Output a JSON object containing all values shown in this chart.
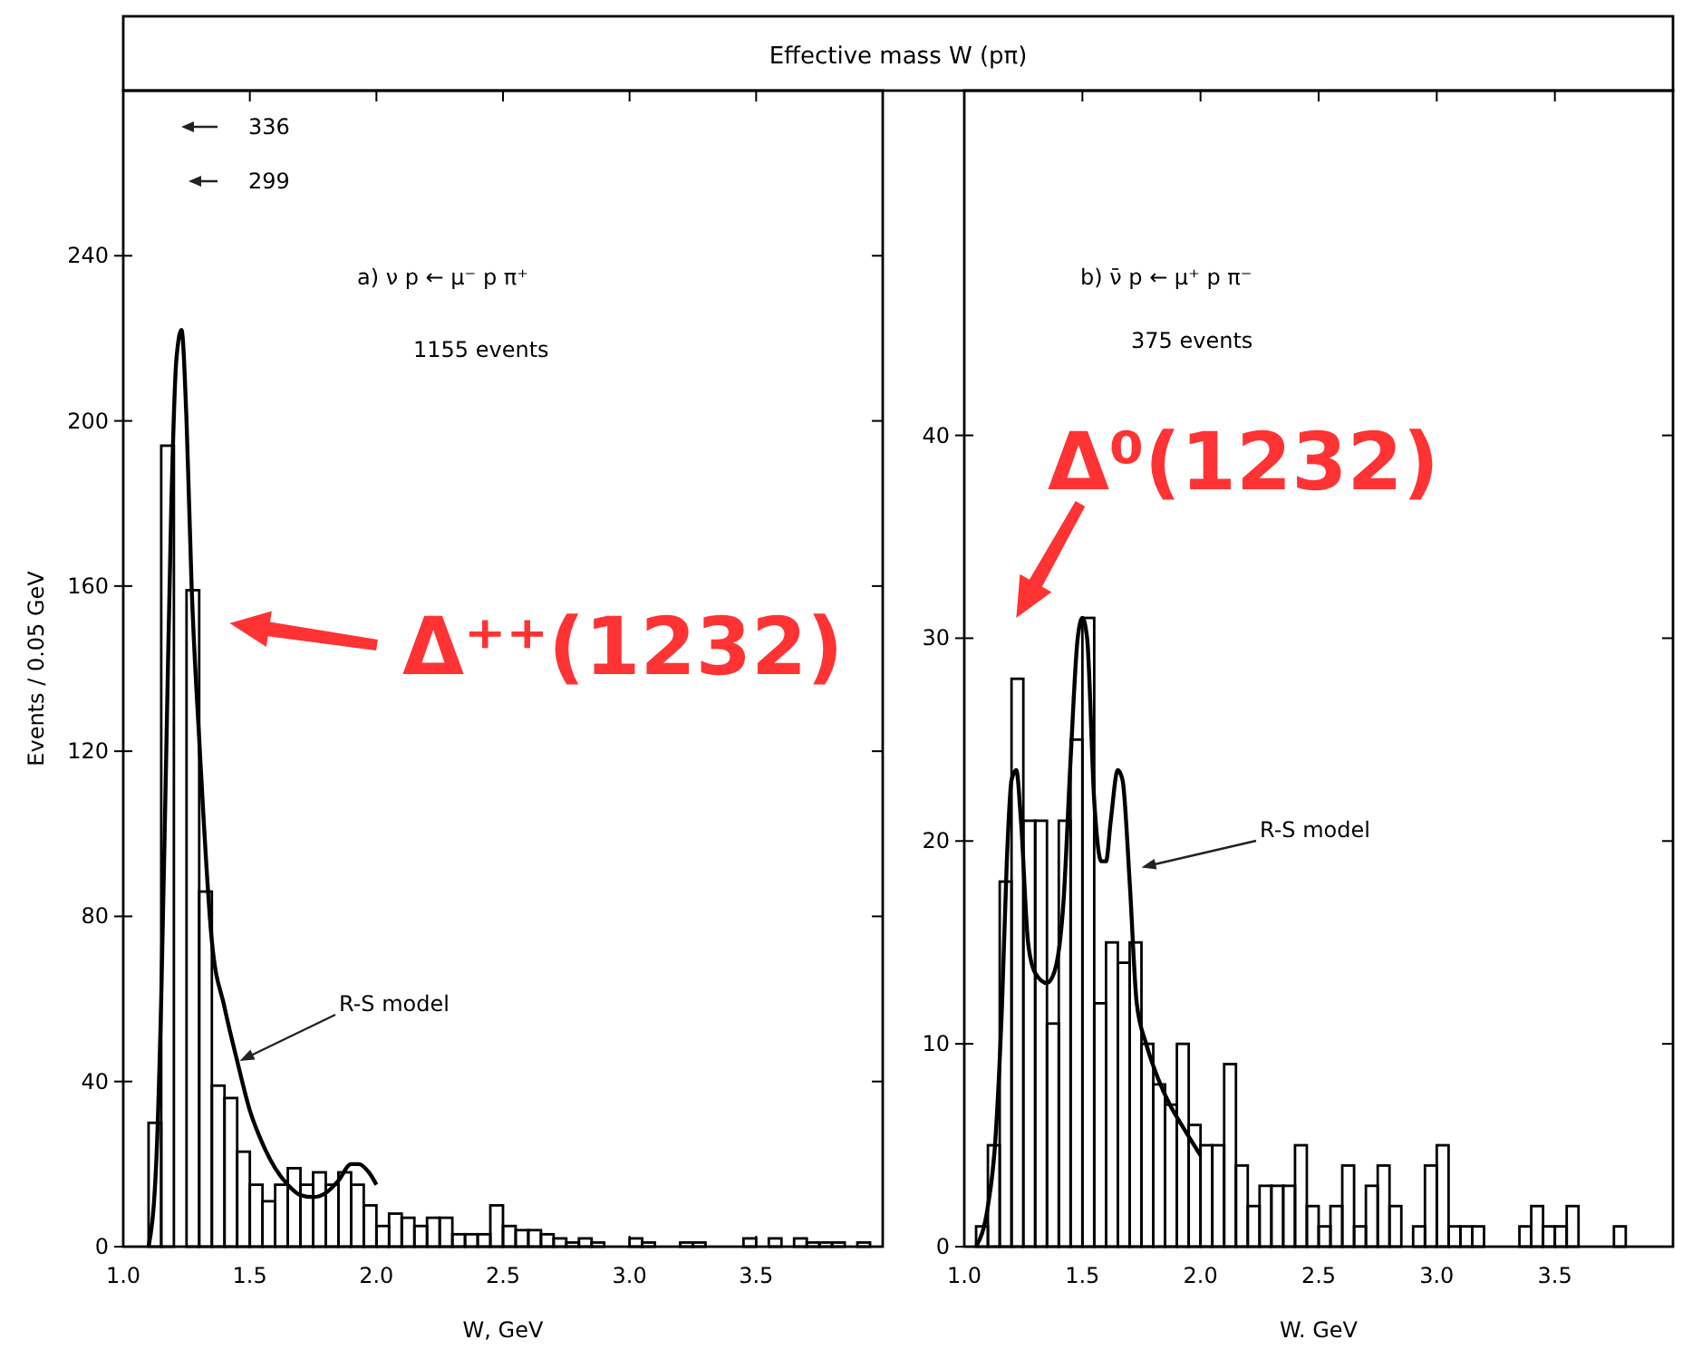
{
  "chart_data": [
    {
      "type": "histogram",
      "title": "Effective mass W (pπ)",
      "xlabel": "W, GeV",
      "ylabel": "Events / 0.05 GeV",
      "xlim": [
        1,
        4
      ],
      "xticks": [
        {
          "value": 1,
          "label": "1.0"
        },
        1.5,
        {
          "value": 2,
          "label": "2.0"
        },
        2.5,
        {
          "value": 3,
          "label": "3.0"
        },
        3.5
      ],
      "ylim": [
        0,
        280
      ],
      "yticks": [
        0,
        40,
        80,
        120,
        160,
        200,
        240
      ],
      "bins": [
        1,
        1.05,
        1.1,
        1.15,
        1.2,
        1.25,
        1.3,
        1.35,
        1.4,
        1.45,
        1.5,
        1.55,
        1.6,
        1.65,
        1.7,
        1.75,
        1.8,
        1.85,
        1.9,
        1.95,
        2,
        2.05,
        2.1,
        2.15,
        2.2,
        2.25,
        2.3,
        2.35,
        2.4,
        2.45,
        2.5,
        2.55,
        2.6,
        2.65,
        2.7,
        2.75,
        2.8,
        2.85,
        2.9,
        2.95,
        3,
        3.05,
        3.1,
        3.15,
        3.2,
        3.25,
        3.3,
        3.35,
        3.4,
        3.45,
        3.5,
        3.55,
        3.6,
        3.65,
        3.7,
        3.75,
        3.8,
        3.85,
        3.9,
        3.95,
        4
      ],
      "values": [
        0,
        0,
        30,
        194,
        null,
        159,
        86,
        39,
        36,
        23,
        15,
        11,
        15,
        19,
        15,
        18,
        15,
        18,
        15,
        10,
        5,
        8,
        7,
        5,
        7,
        7,
        3,
        3,
        3,
        10,
        5,
        4,
        4,
        3,
        2,
        1,
        2,
        1,
        0,
        0,
        2,
        1,
        0,
        0,
        1,
        1,
        0,
        0,
        0,
        2,
        0,
        2,
        0,
        2,
        1,
        1,
        1,
        0,
        1,
        0
      ],
      "series": [
        {
          "type": "line",
          "color": "#000000",
          "x": [
            1.1,
            1.13,
            1.15,
            1.17,
            1.19,
            1.21,
            1.23,
            1.25,
            1.27,
            1.3,
            1.35,
            1.4,
            1.45,
            1.5,
            1.55,
            1.6,
            1.65,
            1.7,
            1.75,
            1.8,
            1.85,
            1.9,
            1.93,
            1.97,
            2
          ],
          "values": [
            0,
            20,
            60,
            120,
            180,
            215,
            222,
            200,
            160,
            123,
            74,
            58,
            45,
            33,
            25,
            19,
            15,
            12.5,
            12,
            13,
            16,
            20,
            20,
            18,
            15
          ]
        }
      ],
      "annotations": [
        "a)  ν p ← μ⁻ p π⁺",
        "1155 events",
        "336",
        "299",
        "R-S model",
        "Δ⁺⁺(1232)"
      ]
    },
    {
      "type": "histogram",
      "xlabel": "W. GeV",
      "xlim": [
        1,
        4
      ],
      "xticks": [
        {
          "value": 1,
          "label": "1.0"
        },
        1.5,
        {
          "value": 2,
          "label": "2.0"
        },
        2.5,
        {
          "value": 3,
          "label": "3.0"
        },
        3.5
      ],
      "ylim": [
        0,
        57
      ],
      "yticks": [
        0,
        10,
        20,
        30,
        40
      ],
      "bins": [
        1,
        1.05,
        1.1,
        1.15,
        1.2,
        1.25,
        1.3,
        1.35,
        1.4,
        1.45,
        1.5,
        1.55,
        1.6,
        1.65,
        1.7,
        1.75,
        1.8,
        1.85,
        1.9,
        1.95,
        2,
        2.05,
        2.1,
        2.15,
        2.2,
        2.25,
        2.3,
        2.35,
        2.4,
        2.45,
        2.5,
        2.55,
        2.6,
        2.65,
        2.7,
        2.75,
        2.8,
        2.85,
        2.9,
        2.95,
        3,
        3.05,
        3.1,
        3.15,
        3.2,
        3.25,
        3.3,
        3.35,
        3.4,
        3.45,
        3.5,
        3.55,
        3.6,
        3.65,
        3.7,
        3.75,
        3.8,
        3.85,
        3.9,
        3.95,
        4
      ],
      "values": [
        0,
        1,
        5,
        18,
        28,
        21,
        21,
        11,
        21,
        25,
        31,
        12,
        15,
        14,
        15,
        10,
        8,
        7,
        10,
        6,
        5,
        5,
        9,
        4,
        2,
        3,
        3,
        3,
        5,
        2,
        1,
        2,
        4,
        1,
        3,
        4,
        2,
        0,
        1,
        4,
        5,
        1,
        1,
        1,
        0,
        0,
        0,
        1,
        2,
        1,
        1,
        2,
        0,
        0,
        0,
        1,
        0,
        0,
        0,
        0
      ],
      "series": [
        {
          "type": "line",
          "color": "#000000",
          "x": [
            1.05,
            1.1,
            1.13,
            1.16,
            1.18,
            1.2,
            1.22,
            1.24,
            1.27,
            1.3,
            1.35,
            1.38,
            1.42,
            1.45,
            1.48,
            1.5,
            1.52,
            1.55,
            1.58,
            1.6,
            1.62,
            1.65,
            1.67,
            1.7,
            1.73,
            1.77,
            1.82,
            1.87,
            1.92,
            2
          ],
          "values": [
            0,
            2,
            5,
            12,
            19,
            23,
            23.5,
            21,
            15,
            13.5,
            13,
            13.5,
            17,
            24,
            30,
            31,
            30,
            22,
            19,
            19,
            21,
            23.5,
            23,
            18,
            12,
            10,
            8.3,
            7,
            6,
            4.5
          ]
        }
      ],
      "annotations": [
        "b)  ν̄ p ← μ⁺ p π⁻",
        "375 events",
        "R-S model",
        "Δ⁰(1232)"
      ]
    }
  ]
}
